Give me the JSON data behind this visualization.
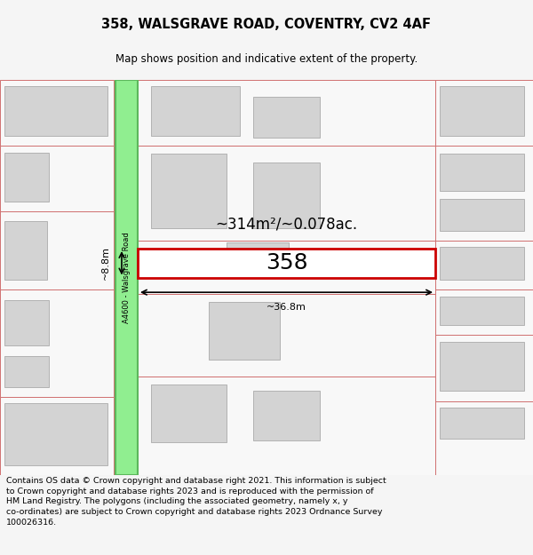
{
  "title_line1": "358, WALSGRAVE ROAD, COVENTRY, CV2 4AF",
  "title_line2": "Map shows position and indicative extent of the property.",
  "footer_text": "Contains OS data © Crown copyright and database right 2021. This information is subject to Crown copyright and database rights 2023 and is reproduced with the permission of HM Land Registry. The polygons (including the associated geometry, namely x, y co-ordinates) are subject to Crown copyright and database rights 2023 Ordnance Survey 100026316.",
  "area_label": "~314m²/~0.078ac.",
  "width_label": "~36.8m",
  "height_label": "~8.8m",
  "plot_number": "358",
  "road_label": "A4600 - Walsgrave Road",
  "map_bg": "#ffffff",
  "road_fill": "#90ee90",
  "road_border": "#5cb85c",
  "plot_border": "#cc0000",
  "building_fill": "#d3d3d3",
  "neighbor_border": "#d07070",
  "title_fontsize": 10.5,
  "subtitle_fontsize": 8.5,
  "footer_fontsize": 6.8,
  "fig_bg": "#f5f5f5"
}
